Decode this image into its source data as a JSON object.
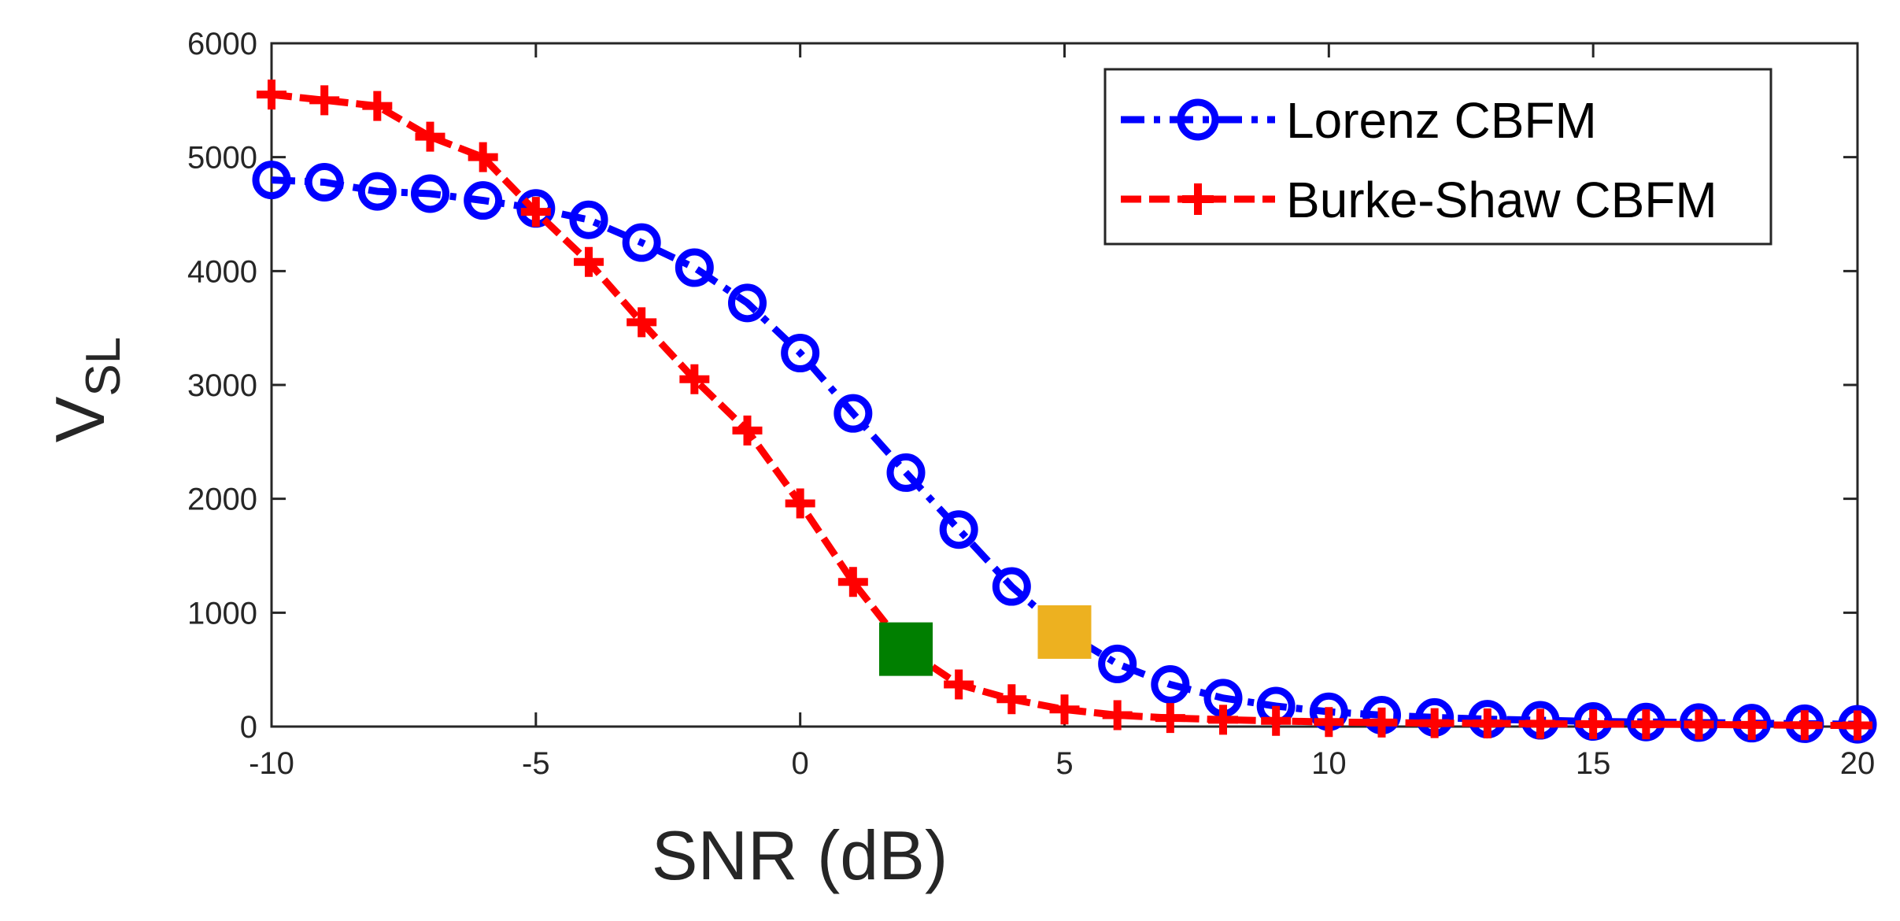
{
  "chart_data": {
    "type": "line",
    "title": "",
    "xlabel": "SNR (dB)",
    "ylabel": {
      "main": "V",
      "subscript": "SL"
    },
    "xlim": [
      -10,
      20
    ],
    "ylim": [
      0,
      6000
    ],
    "xticks": [
      -10,
      -5,
      0,
      5,
      10,
      15,
      20
    ],
    "yticks": [
      0,
      1000,
      2000,
      3000,
      4000,
      5000,
      6000
    ],
    "grid": false,
    "legend_position": "top-right",
    "x": [
      -10,
      -9,
      -8,
      -7,
      -6,
      -5,
      -4,
      -3,
      -2,
      -1,
      0,
      1,
      2,
      3,
      4,
      5,
      6,
      7,
      8,
      9,
      10,
      11,
      12,
      13,
      14,
      15,
      16,
      17,
      18,
      19,
      20
    ],
    "series": [
      {
        "name": "Lorenz CBFM",
        "color": "#0000ff",
        "marker": "circle",
        "line_style": "dash-dot",
        "values": [
          4800,
          4780,
          4700,
          4680,
          4620,
          4550,
          4450,
          4250,
          4030,
          3720,
          3280,
          2750,
          2230,
          1730,
          1230,
          830,
          550,
          370,
          250,
          180,
          130,
          100,
          80,
          65,
          55,
          45,
          40,
          35,
          30,
          25,
          20
        ]
      },
      {
        "name": "Burke-Shaw CBFM",
        "color": "#ff0000",
        "marker": "plus",
        "line_style": "dashed",
        "values": [
          5550,
          5500,
          5450,
          5180,
          5000,
          4520,
          4080,
          3550,
          3050,
          2600,
          1960,
          1270,
          680,
          370,
          240,
          150,
          100,
          75,
          60,
          50,
          40,
          35,
          30,
          28,
          25,
          22,
          20,
          18,
          15,
          12,
          10
        ]
      }
    ],
    "annotations": [
      {
        "type": "square-marker",
        "color": "#007f00",
        "x": 2,
        "y": 680
      },
      {
        "type": "square-marker",
        "color": "#edb120",
        "x": 5,
        "y": 830
      }
    ]
  }
}
